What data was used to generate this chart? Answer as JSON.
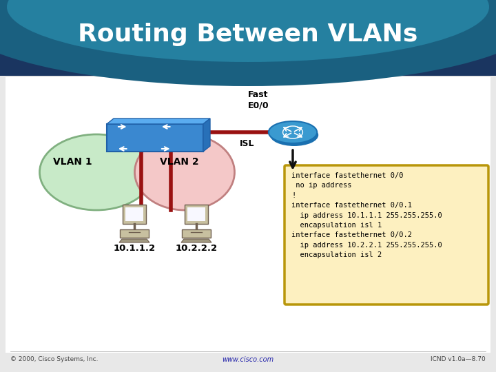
{
  "title": "Routing Between VLANs",
  "title_color": "#FFFFFF",
  "header_dark": "#1a3560",
  "header_mid": "#1a6080",
  "header_light": "#30a0c0",
  "slide_bg": "#f4f4f4",
  "content_bg": "#ffffff",
  "footer_left": "© 2000, Cisco Systems, Inc.",
  "footer_center": "www.cisco.com",
  "footer_right": "ICND v1.0a—8.70",
  "vlan1_label": "VLAN 1",
  "vlan2_label": "VLAN 2",
  "vlan1_color": "#c8eac8",
  "vlan2_color": "#f4c8c8",
  "vlan1_edge": "#80b080",
  "vlan2_edge": "#c08080",
  "vlan1_ip": "10.1.1.2",
  "vlan2_ip": "10.2.2.2",
  "fast_label": "Fast\nE0/0",
  "isl_label": "ISL",
  "code_text": "interface fastethernet 0/0\n no ip address\n!\ninterface fastethernet 0/0.1\n  ip address 10.1.1.1 255.255.255.0\n  encapsulation isl 1\ninterface fastethernet 0/0.2\n  ip address 10.2.2.1 255.255.255.0\n  encapsulation isl 2",
  "code_bg": "#fdf0c0",
  "code_border": "#b8960a",
  "switch_color": "#3a88d0",
  "switch_dark": "#2060a8",
  "router_color": "#3a9ad0",
  "router_dark": "#1a70b0",
  "cable_color": "#991111",
  "arrow_color": "#111111",
  "pc_body": "#c8c0a0",
  "pc_screen": "#f8f8ff",
  "pc_dark": "#a09880"
}
